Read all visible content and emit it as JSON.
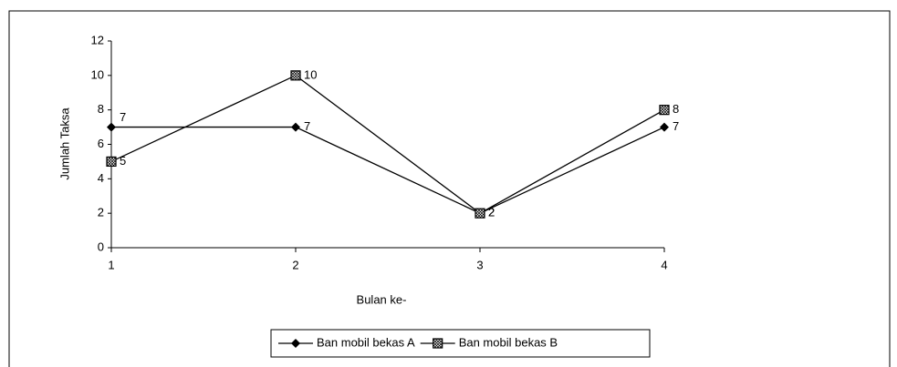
{
  "chart_data": {
    "type": "line",
    "x": [
      1,
      2,
      3,
      4
    ],
    "xlim": [
      1,
      4
    ],
    "xticks": [
      1,
      2,
      3,
      4
    ],
    "ylim": [
      0,
      12
    ],
    "yticks": [
      0,
      2,
      4,
      6,
      8,
      10,
      12
    ],
    "x_label": "Bulan ke-",
    "y_label": "Jumlah Taksa",
    "legend": "bottom",
    "series": [
      {
        "name": "Ban mobil bekas A",
        "color": "#000000",
        "marker": "diamond",
        "values": [
          7,
          7,
          2,
          7
        ]
      },
      {
        "name": "Ban mobil bekas B",
        "color": "#000000",
        "marker": "square",
        "values": [
          5,
          10,
          2,
          8
        ]
      }
    ]
  }
}
